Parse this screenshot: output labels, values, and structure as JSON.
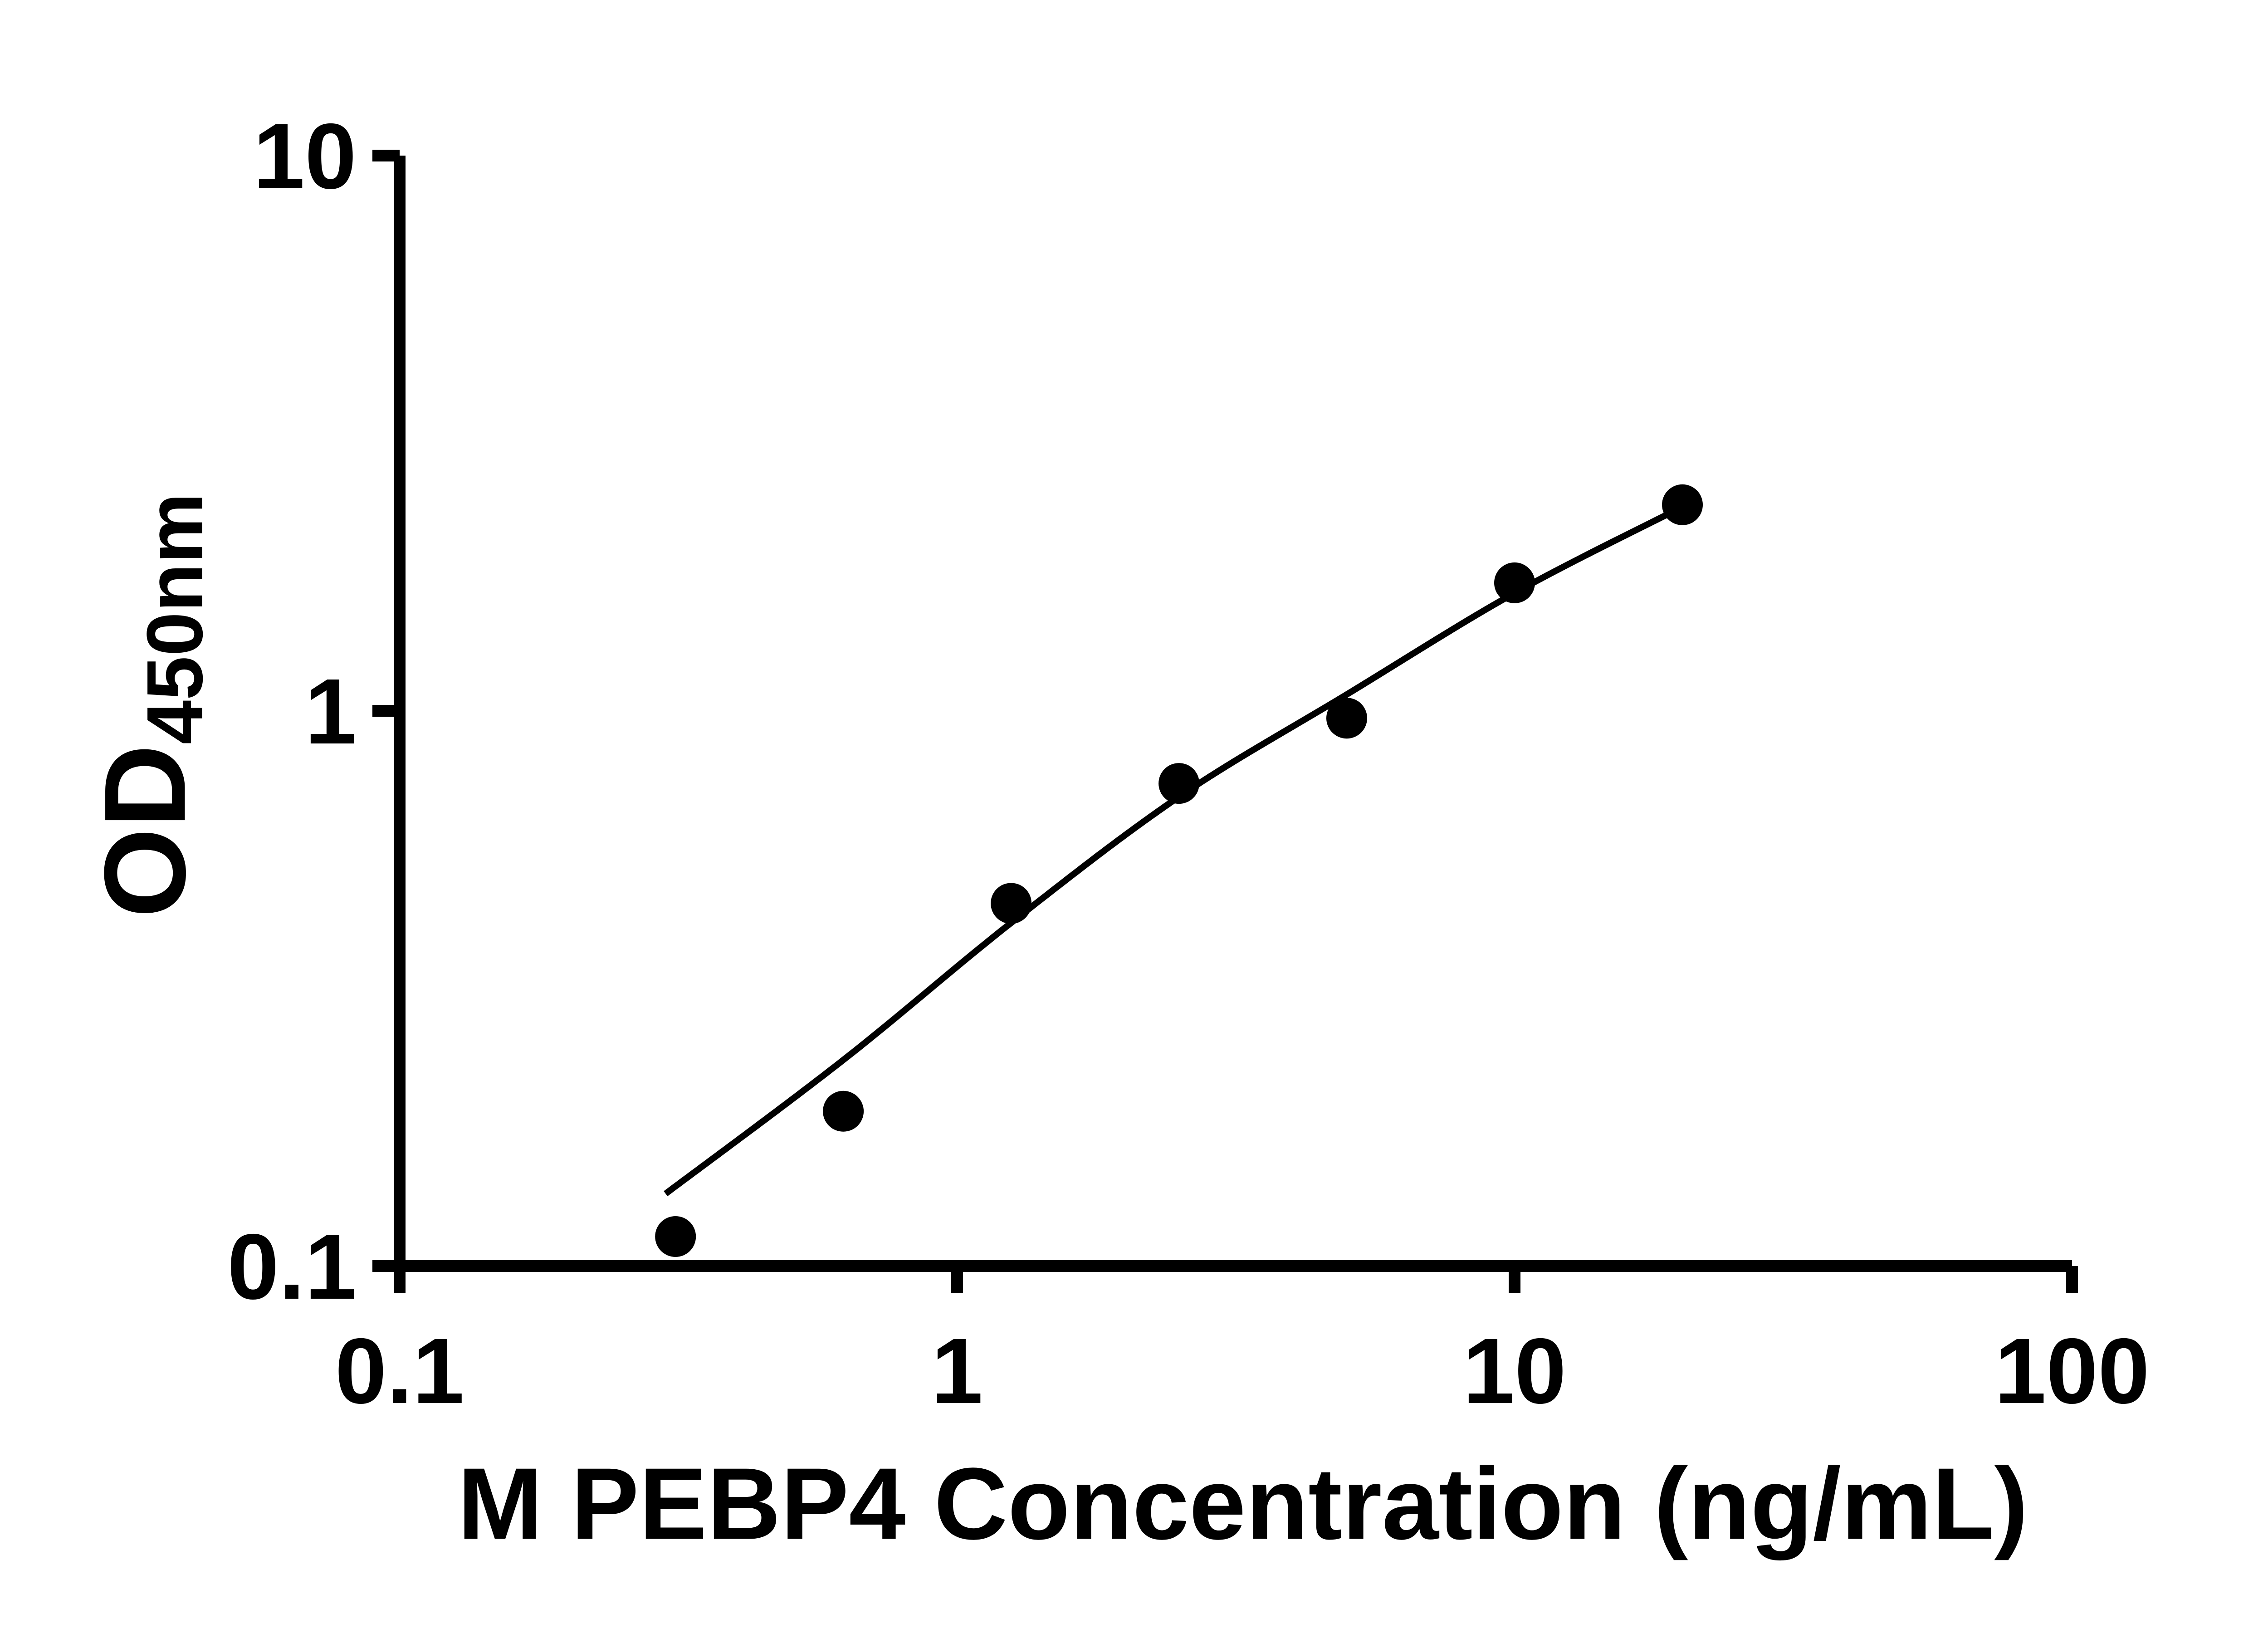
{
  "chart_data": {
    "type": "scatter",
    "title": "",
    "xlabel": "M PEBP4 Concentration (ng/mL)",
    "ylabel_main": "OD",
    "ylabel_sub": "450nm",
    "x_scale": "log",
    "y_scale": "log",
    "xlim": [
      0.1,
      100
    ],
    "ylim": [
      0.1,
      10
    ],
    "x_ticks": [
      0.1,
      1,
      10,
      100
    ],
    "x_tick_labels": [
      "0.1",
      "1",
      "10",
      "100"
    ],
    "y_ticks": [
      0.1,
      1,
      10
    ],
    "y_tick_labels": [
      "0.1",
      "1",
      "10"
    ],
    "grid": false,
    "legend_position": "none",
    "marker_color": "#000000",
    "line_color": "#000000",
    "axis_color": "#000000",
    "background_color": "#ffffff",
    "points": [
      {
        "x": 0.3125,
        "y": 0.113
      },
      {
        "x": 0.625,
        "y": 0.19
      },
      {
        "x": 1.25,
        "y": 0.45
      },
      {
        "x": 2.5,
        "y": 0.74
      },
      {
        "x": 5,
        "y": 0.97
      },
      {
        "x": 10,
        "y": 1.7
      },
      {
        "x": 20,
        "y": 2.35
      }
    ],
    "fit_curve": [
      {
        "x": 0.3,
        "y": 0.135
      },
      {
        "x": 0.625,
        "y": 0.235
      },
      {
        "x": 1.25,
        "y": 0.415
      },
      {
        "x": 2.5,
        "y": 0.7
      },
      {
        "x": 5,
        "y": 1.07
      },
      {
        "x": 10,
        "y": 1.63
      },
      {
        "x": 20,
        "y": 2.33
      }
    ]
  }
}
